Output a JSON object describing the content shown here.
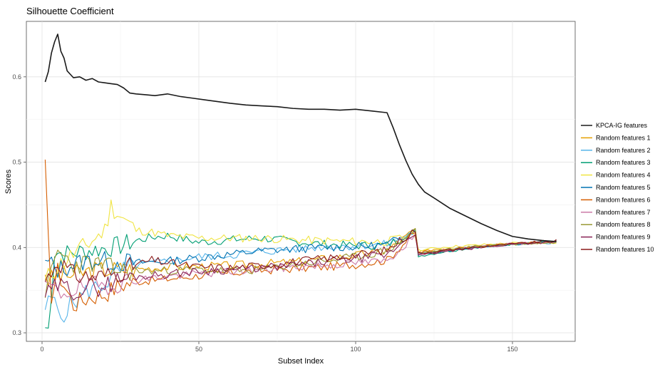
{
  "chart_data": {
    "type": "line",
    "title": "Silhouette Coefficient",
    "xlabel": "Subset Index",
    "ylabel": "Scores",
    "xlim": [
      -5,
      170
    ],
    "ylim": [
      0.29,
      0.665
    ],
    "xticks": [
      0,
      50,
      100,
      150
    ],
    "yticks": [
      0.3,
      0.4,
      0.5,
      0.6
    ],
    "grid": true,
    "legend_position": "right",
    "series": [
      {
        "name": "KPCA-IG features",
        "color": "#1a1a1a",
        "kind": "kpca",
        "points": [
          [
            1,
            0.594
          ],
          [
            2,
            0.606
          ],
          [
            3,
            0.628
          ],
          [
            4,
            0.641
          ],
          [
            5,
            0.65
          ],
          [
            6,
            0.63
          ],
          [
            7,
            0.622
          ],
          [
            8,
            0.607
          ],
          [
            9,
            0.603
          ],
          [
            10,
            0.599
          ],
          [
            12,
            0.6
          ],
          [
            14,
            0.596
          ],
          [
            16,
            0.598
          ],
          [
            18,
            0.594
          ],
          [
            20,
            0.593
          ],
          [
            22,
            0.592
          ],
          [
            24,
            0.591
          ],
          [
            26,
            0.587
          ],
          [
            28,
            0.581
          ],
          [
            30,
            0.58
          ],
          [
            33,
            0.579
          ],
          [
            36,
            0.578
          ],
          [
            40,
            0.58
          ],
          [
            44,
            0.577
          ],
          [
            48,
            0.575
          ],
          [
            52,
            0.573
          ],
          [
            56,
            0.571
          ],
          [
            60,
            0.569
          ],
          [
            65,
            0.567
          ],
          [
            70,
            0.566
          ],
          [
            75,
            0.565
          ],
          [
            80,
            0.563
          ],
          [
            85,
            0.562
          ],
          [
            90,
            0.562
          ],
          [
            95,
            0.561
          ],
          [
            100,
            0.562
          ],
          [
            105,
            0.56
          ],
          [
            110,
            0.558
          ],
          [
            112,
            0.54
          ],
          [
            114,
            0.52
          ],
          [
            116,
            0.502
          ],
          [
            118,
            0.486
          ],
          [
            120,
            0.474
          ],
          [
            122,
            0.465
          ],
          [
            125,
            0.458
          ],
          [
            130,
            0.446
          ],
          [
            135,
            0.437
          ],
          [
            140,
            0.428
          ],
          [
            145,
            0.42
          ],
          [
            150,
            0.413
          ],
          [
            155,
            0.41
          ],
          [
            160,
            0.408
          ],
          [
            164,
            0.407
          ]
        ]
      },
      {
        "name": "Random features 1",
        "color": "#E69F00",
        "seed": 3,
        "start": 0.368,
        "profile": [
          [
            1,
            0.368
          ],
          [
            2,
            0.362
          ],
          [
            5,
            0.366
          ],
          [
            10,
            0.368
          ],
          [
            15,
            0.372
          ],
          [
            20,
            0.374
          ],
          [
            30,
            0.375
          ],
          [
            40,
            0.377
          ],
          [
            50,
            0.378
          ],
          [
            60,
            0.379
          ],
          [
            70,
            0.381
          ],
          [
            80,
            0.383
          ],
          [
            90,
            0.387
          ],
          [
            100,
            0.391
          ],
          [
            110,
            0.396
          ],
          [
            119,
            0.421
          ],
          [
            120,
            0.394
          ],
          [
            125,
            0.398
          ],
          [
            135,
            0.4
          ],
          [
            145,
            0.403
          ],
          [
            155,
            0.405
          ],
          [
            164,
            0.407
          ]
        ]
      },
      {
        "name": "Random features 2",
        "color": "#56B4E9",
        "seed": 5,
        "start": 0.327,
        "profile": [
          [
            1,
            0.327
          ],
          [
            3,
            0.341
          ],
          [
            6,
            0.32
          ],
          [
            10,
            0.336
          ],
          [
            15,
            0.35
          ],
          [
            20,
            0.358
          ],
          [
            25,
            0.372
          ],
          [
            30,
            0.379
          ],
          [
            40,
            0.384
          ],
          [
            50,
            0.389
          ],
          [
            60,
            0.391
          ],
          [
            70,
            0.395
          ],
          [
            80,
            0.398
          ],
          [
            90,
            0.401
          ],
          [
            100,
            0.402
          ],
          [
            110,
            0.404
          ],
          [
            119,
            0.419
          ],
          [
            120,
            0.392
          ],
          [
            130,
            0.398
          ],
          [
            140,
            0.401
          ],
          [
            150,
            0.404
          ],
          [
            164,
            0.406
          ]
        ]
      },
      {
        "name": "Random features 3",
        "color": "#009E73",
        "seed": 7,
        "start": 0.306,
        "profile": [
          [
            1,
            0.306
          ],
          [
            2,
            0.304
          ],
          [
            4,
            0.395
          ],
          [
            8,
            0.393
          ],
          [
            12,
            0.395
          ],
          [
            16,
            0.397
          ],
          [
            20,
            0.399
          ],
          [
            25,
            0.402
          ],
          [
            30,
            0.408
          ],
          [
            35,
            0.412
          ],
          [
            40,
            0.414
          ],
          [
            50,
            0.406
          ],
          [
            60,
            0.409
          ],
          [
            70,
            0.411
          ],
          [
            80,
            0.407
          ],
          [
            90,
            0.404
          ],
          [
            100,
            0.402
          ],
          [
            110,
            0.403
          ],
          [
            119,
            0.418
          ],
          [
            120,
            0.39
          ],
          [
            130,
            0.396
          ],
          [
            140,
            0.401
          ],
          [
            150,
            0.404
          ],
          [
            164,
            0.407
          ]
        ]
      },
      {
        "name": "Random features 4",
        "color": "#F0E442",
        "seed": 11,
        "start": 0.362,
        "profile": [
          [
            1,
            0.362
          ],
          [
            5,
            0.378
          ],
          [
            10,
            0.392
          ],
          [
            15,
            0.405
          ],
          [
            20,
            0.42
          ],
          [
            22,
            0.449
          ],
          [
            25,
            0.437
          ],
          [
            30,
            0.42
          ],
          [
            35,
            0.418
          ],
          [
            40,
            0.414
          ],
          [
            50,
            0.411
          ],
          [
            60,
            0.411
          ],
          [
            70,
            0.411
          ],
          [
            80,
            0.409
          ],
          [
            90,
            0.408
          ],
          [
            100,
            0.407
          ],
          [
            110,
            0.407
          ],
          [
            119,
            0.416
          ],
          [
            120,
            0.397
          ],
          [
            130,
            0.401
          ],
          [
            140,
            0.403
          ],
          [
            150,
            0.405
          ],
          [
            164,
            0.406
          ]
        ]
      },
      {
        "name": "Random features 5",
        "color": "#0072B2",
        "seed": 13,
        "start": 0.385,
        "profile": [
          [
            1,
            0.385
          ],
          [
            5,
            0.374
          ],
          [
            10,
            0.38
          ],
          [
            15,
            0.385
          ],
          [
            20,
            0.384
          ],
          [
            30,
            0.382
          ],
          [
            40,
            0.384
          ],
          [
            50,
            0.388
          ],
          [
            60,
            0.392
          ],
          [
            70,
            0.396
          ],
          [
            80,
            0.398
          ],
          [
            90,
            0.4
          ],
          [
            100,
            0.401
          ],
          [
            110,
            0.403
          ],
          [
            119,
            0.422
          ],
          [
            120,
            0.392
          ],
          [
            130,
            0.397
          ],
          [
            140,
            0.401
          ],
          [
            150,
            0.404
          ],
          [
            164,
            0.407
          ]
        ]
      },
      {
        "name": "Random features 6",
        "color": "#D55E00",
        "seed": 17,
        "start": 0.503,
        "profile": [
          [
            1,
            0.503
          ],
          [
            2,
            0.405
          ],
          [
            3,
            0.345
          ],
          [
            5,
            0.372
          ],
          [
            10,
            0.333
          ],
          [
            15,
            0.342
          ],
          [
            20,
            0.346
          ],
          [
            25,
            0.356
          ],
          [
            30,
            0.36
          ],
          [
            40,
            0.363
          ],
          [
            50,
            0.367
          ],
          [
            60,
            0.37
          ],
          [
            70,
            0.373
          ],
          [
            80,
            0.375
          ],
          [
            90,
            0.377
          ],
          [
            100,
            0.38
          ],
          [
            110,
            0.385
          ],
          [
            119,
            0.418
          ],
          [
            120,
            0.394
          ],
          [
            130,
            0.398
          ],
          [
            140,
            0.402
          ],
          [
            150,
            0.404
          ],
          [
            164,
            0.407
          ]
        ]
      },
      {
        "name": "Random features 7",
        "color": "#CC79A7",
        "seed": 19,
        "start": 0.36,
        "profile": [
          [
            1,
            0.36
          ],
          [
            5,
            0.345
          ],
          [
            10,
            0.351
          ],
          [
            15,
            0.354
          ],
          [
            20,
            0.356
          ],
          [
            30,
            0.362
          ],
          [
            40,
            0.366
          ],
          [
            50,
            0.369
          ],
          [
            60,
            0.372
          ],
          [
            70,
            0.374
          ],
          [
            80,
            0.377
          ],
          [
            90,
            0.379
          ],
          [
            100,
            0.382
          ],
          [
            110,
            0.384
          ],
          [
            119,
            0.415
          ],
          [
            120,
            0.392
          ],
          [
            130,
            0.397
          ],
          [
            140,
            0.401
          ],
          [
            150,
            0.404
          ],
          [
            164,
            0.407
          ]
        ]
      },
      {
        "name": "Random features 8",
        "color": "#999933",
        "seed": 23,
        "start": 0.341,
        "profile": [
          [
            1,
            0.341
          ],
          [
            3,
            0.37
          ],
          [
            5,
            0.395
          ],
          [
            10,
            0.38
          ],
          [
            15,
            0.382
          ],
          [
            20,
            0.378
          ],
          [
            25,
            0.373
          ],
          [
            30,
            0.372
          ],
          [
            40,
            0.373
          ],
          [
            50,
            0.374
          ],
          [
            60,
            0.372
          ],
          [
            70,
            0.374
          ],
          [
            80,
            0.38
          ],
          [
            90,
            0.384
          ],
          [
            100,
            0.389
          ],
          [
            110,
            0.396
          ],
          [
            119,
            0.42
          ],
          [
            120,
            0.393
          ],
          [
            130,
            0.398
          ],
          [
            140,
            0.402
          ],
          [
            150,
            0.404
          ],
          [
            164,
            0.406
          ]
        ]
      },
      {
        "name": "Random features 9",
        "color": "#882255",
        "seed": 29,
        "start": 0.342,
        "profile": [
          [
            1,
            0.342
          ],
          [
            5,
            0.355
          ],
          [
            10,
            0.35
          ],
          [
            15,
            0.352
          ],
          [
            20,
            0.356
          ],
          [
            25,
            0.362
          ],
          [
            30,
            0.366
          ],
          [
            40,
            0.369
          ],
          [
            50,
            0.372
          ],
          [
            60,
            0.374
          ],
          [
            70,
            0.376
          ],
          [
            80,
            0.379
          ],
          [
            90,
            0.383
          ],
          [
            100,
            0.387
          ],
          [
            110,
            0.391
          ],
          [
            119,
            0.419
          ],
          [
            120,
            0.391
          ],
          [
            130,
            0.396
          ],
          [
            140,
            0.4
          ],
          [
            150,
            0.404
          ],
          [
            164,
            0.407
          ]
        ]
      },
      {
        "name": "Random features 10",
        "color": "#8B1A1A",
        "seed": 31,
        "start": 0.36,
        "profile": [
          [
            1,
            0.36
          ],
          [
            5,
            0.385
          ],
          [
            10,
            0.368
          ],
          [
            15,
            0.366
          ],
          [
            20,
            0.367
          ],
          [
            25,
            0.372
          ],
          [
            30,
            0.38
          ],
          [
            35,
            0.385
          ],
          [
            40,
            0.382
          ],
          [
            50,
            0.377
          ],
          [
            60,
            0.376
          ],
          [
            70,
            0.379
          ],
          [
            80,
            0.383
          ],
          [
            90,
            0.387
          ],
          [
            100,
            0.391
          ],
          [
            110,
            0.397
          ],
          [
            119,
            0.421
          ],
          [
            120,
            0.393
          ],
          [
            130,
            0.397
          ],
          [
            140,
            0.401
          ],
          [
            150,
            0.404
          ],
          [
            164,
            0.408
          ]
        ]
      }
    ]
  }
}
